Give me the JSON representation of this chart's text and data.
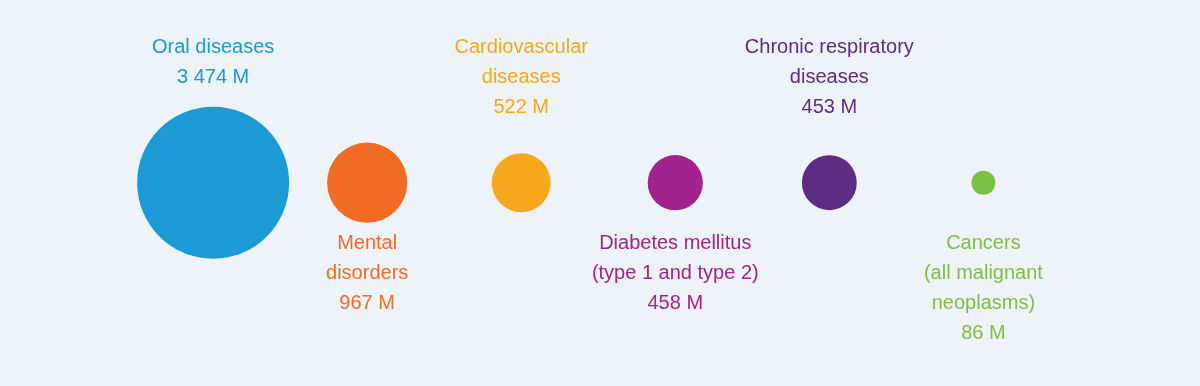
{
  "chart_data": {
    "type": "other",
    "categories": [
      "Oral diseases",
      "Mental\ndisorders",
      "Cardiovascular\ndiseases",
      "Diabetes mellitus\n(type 1 and type 2)",
      "Chronic respiratory\ndiseases",
      "Cancers\n(all malignant\nneoplasms)"
    ],
    "values": [
      3474,
      967,
      522,
      458,
      453,
      86
    ],
    "value_labels": [
      "3 474 M",
      "967 M",
      "522 M",
      "458 M",
      "453 M",
      "86 M"
    ],
    "colors": [
      "#1b9ad6",
      "#f26b24",
      "#f5a81c",
      "#a3238e",
      "#5c2d83",
      "#7ac143"
    ]
  }
}
